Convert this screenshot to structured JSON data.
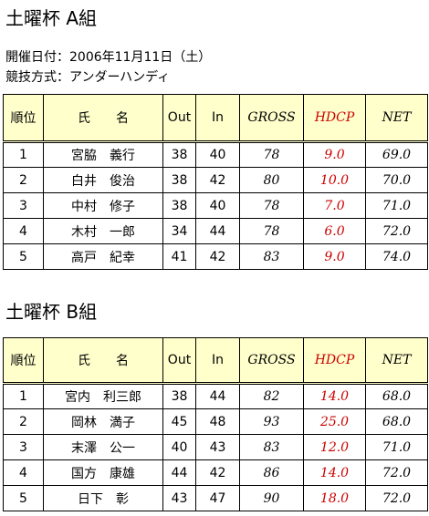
{
  "info": [
    "開催日付：2006年11月11日（土）",
    "競技方式：アンダーハンディ"
  ],
  "header": [
    "順位",
    "氏　　名",
    "Out",
    "In",
    "GROSS",
    "HDCP",
    "NET"
  ],
  "sections": [
    {
      "title": "土曜杯 A組",
      "rows": [
        [
          "1",
          "宮脇　義行",
          "38",
          "40",
          "78",
          "9.0",
          "69.0"
        ],
        [
          "2",
          "白井　俊治",
          "38",
          "42",
          "80",
          "10.0",
          "70.0"
        ],
        [
          "3",
          "中村　修子",
          "38",
          "40",
          "78",
          "7.0",
          "71.0"
        ],
        [
          "4",
          "木村　一郎",
          "34",
          "44",
          "78",
          "6.0",
          "72.0"
        ],
        [
          "5",
          "高戸　紀幸",
          "41",
          "42",
          "83",
          "9.0",
          "74.0"
        ]
      ]
    },
    {
      "title": "土曜杯 B組",
      "rows": [
        [
          "1",
          "宮内　利三郎",
          "38",
          "44",
          "82",
          "14.0",
          "68.0"
        ],
        [
          "2",
          "岡林　満子",
          "45",
          "48",
          "93",
          "25.0",
          "68.0"
        ],
        [
          "3",
          "末澤　公一",
          "40",
          "43",
          "83",
          "12.0",
          "71.0"
        ],
        [
          "4",
          "国方　康雄",
          "44",
          "42",
          "86",
          "14.0",
          "72.0"
        ],
        [
          "5",
          "日下　彰",
          "43",
          "47",
          "90",
          "18.0",
          "72.0"
        ]
      ]
    }
  ]
}
